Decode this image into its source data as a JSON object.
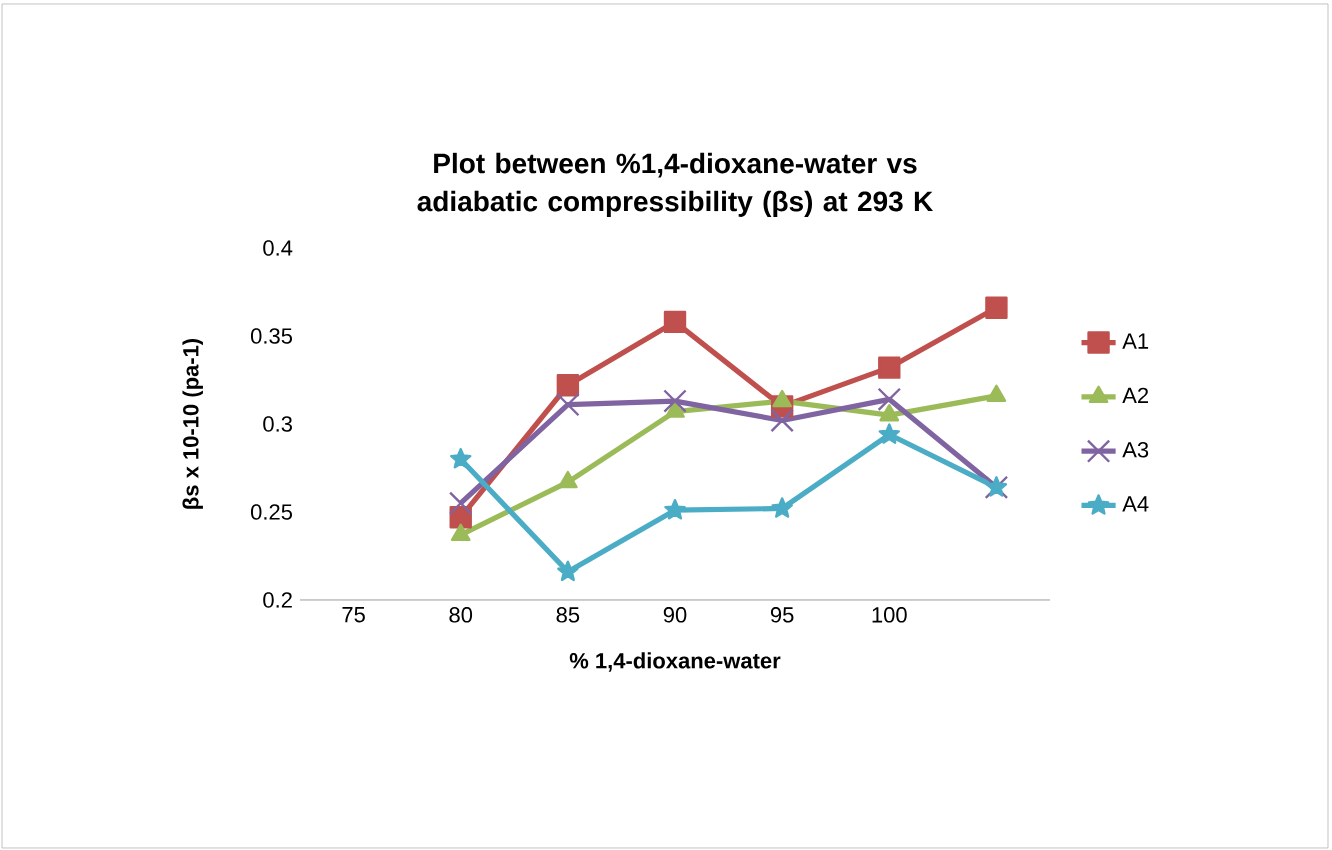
{
  "chart_data": {
    "type": "line",
    "title": "Plot between %1,4-dioxane-water vs adiabatic compressibility (βs)  at 293 K",
    "xlabel": "% 1,4-dioxane-water",
    "ylabel": "βs x 10-10 (pa-1)",
    "categories": [
      "75",
      "80",
      "85",
      "90",
      "95",
      "100",
      null
    ],
    "series": [
      {
        "name": "A1",
        "color": "#c0504d",
        "marker": "square",
        "values": [
          null,
          0.247,
          0.322,
          0.358,
          0.31,
          0.332,
          0.366
        ]
      },
      {
        "name": "A2",
        "color": "#9bbb59",
        "marker": "triangle",
        "values": [
          null,
          0.237,
          0.267,
          0.307,
          0.313,
          0.305,
          0.316
        ]
      },
      {
        "name": "A3",
        "color": "#8064a2",
        "marker": "cross",
        "values": [
          null,
          0.255,
          0.311,
          0.313,
          0.302,
          0.314,
          0.264
        ]
      },
      {
        "name": "A4",
        "color": "#4bacc6",
        "marker": "star",
        "values": [
          null,
          0.28,
          0.216,
          0.251,
          0.252,
          0.294,
          0.264
        ]
      }
    ],
    "ylim": [
      0.2,
      0.4
    ],
    "yticks": [
      0.2,
      0.25,
      0.3,
      0.35,
      0.4
    ],
    "legend": "right",
    "line_style": "solid"
  }
}
